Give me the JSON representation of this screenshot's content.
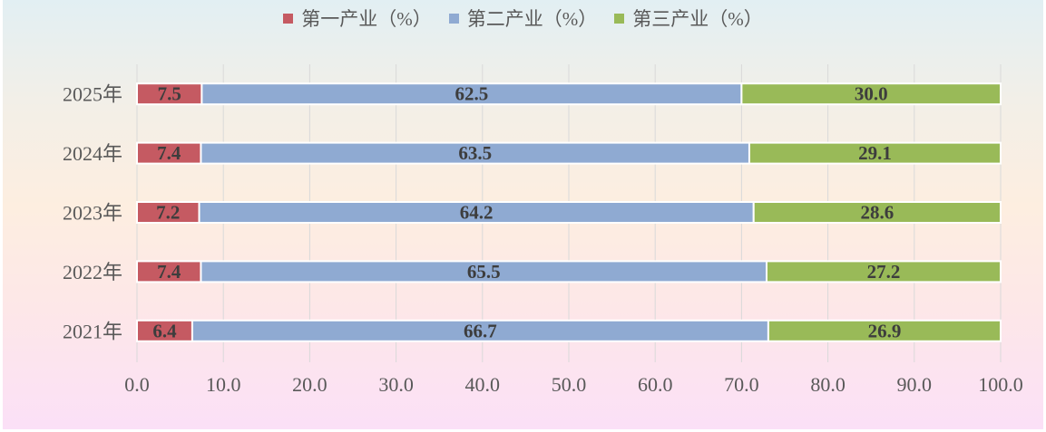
{
  "chart_data": {
    "type": "bar",
    "orientation": "horizontal",
    "stacked": true,
    "categories": [
      "2025年",
      "2024年",
      "2023年",
      "2022年",
      "2021年"
    ],
    "series": [
      {
        "name": "第一产业（%）",
        "color": "#c55a62",
        "values": [
          7.5,
          7.4,
          7.2,
          7.4,
          6.4
        ]
      },
      {
        "name": "第二产业（%）",
        "color": "#8faad2",
        "values": [
          62.5,
          63.5,
          64.2,
          65.5,
          66.7
        ]
      },
      {
        "name": "第三产业（%）",
        "color": "#99ba58",
        "values": [
          30.0,
          29.1,
          28.6,
          27.2,
          26.9
        ]
      }
    ],
    "xlim": [
      0,
      100
    ],
    "xtick_labels": [
      "0.0",
      "10.0",
      "20.0",
      "30.0",
      "40.0",
      "50.0",
      "60.0",
      "70.0",
      "80.0",
      "90.0",
      "100.0"
    ],
    "grid": true,
    "legend_position": "top",
    "data_labels": true
  }
}
